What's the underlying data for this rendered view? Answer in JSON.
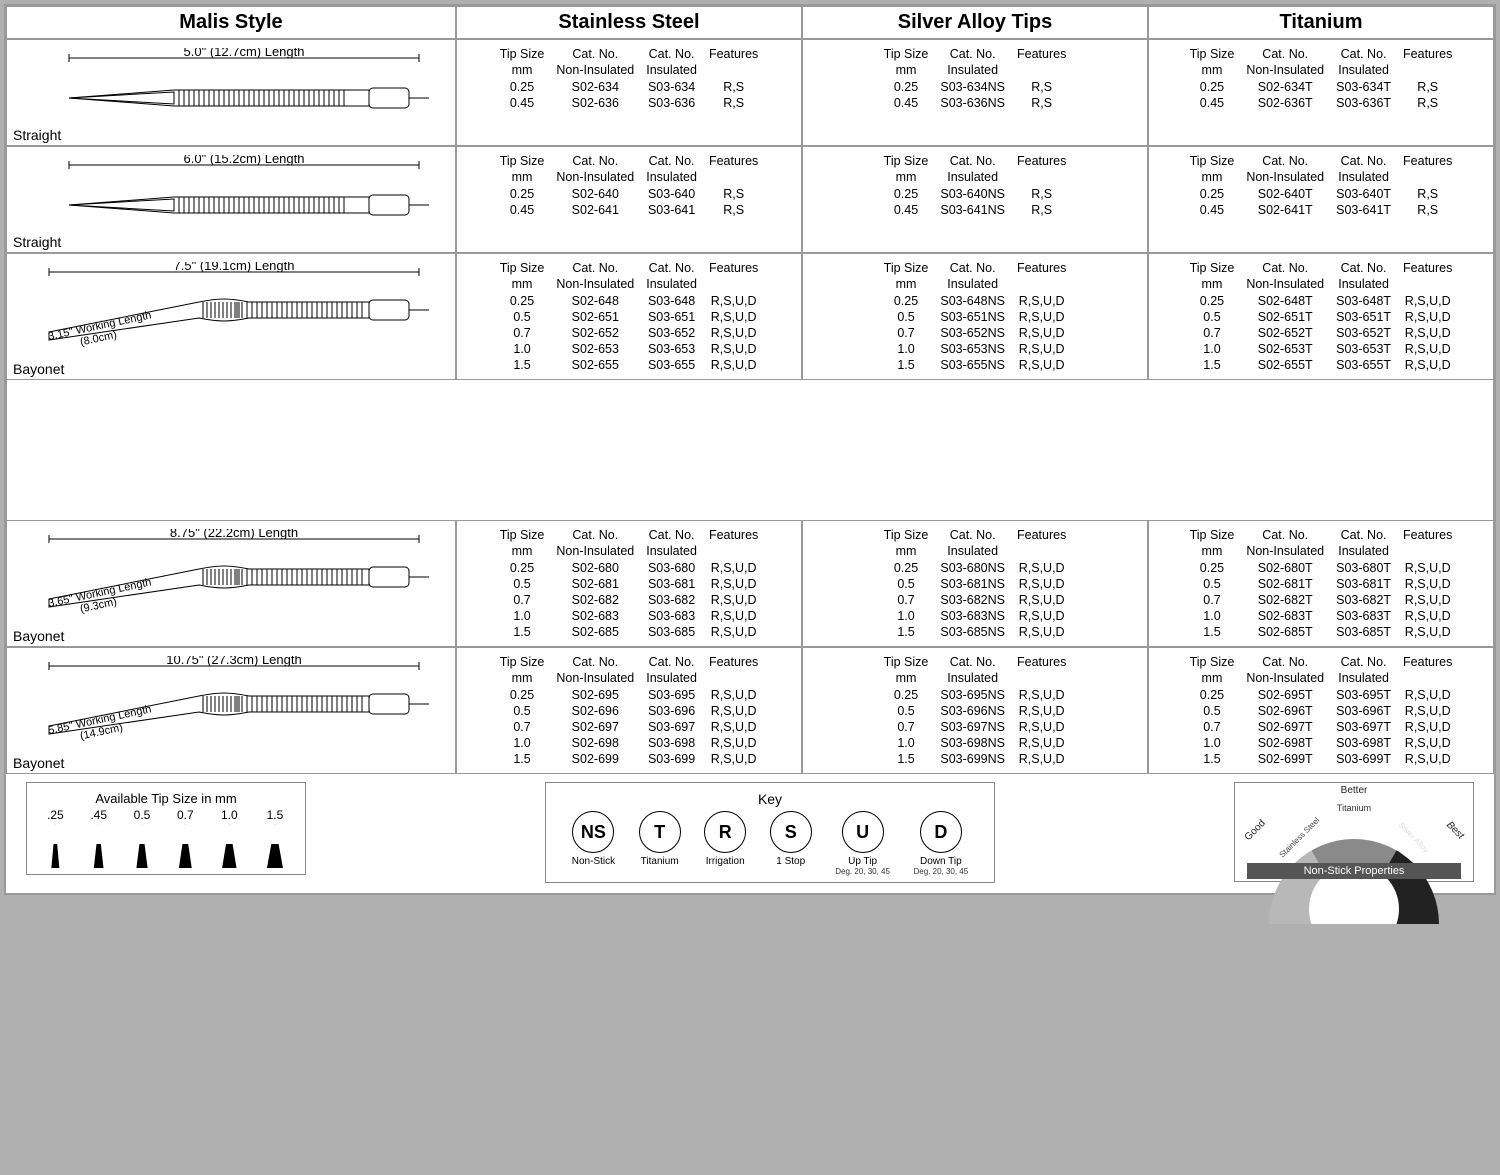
{
  "headers": {
    "style": "Malis Style",
    "materials": [
      "Stainless Steel",
      "Silver Alloy Tips",
      "Titanium"
    ]
  },
  "column_labels": {
    "tip": "Tip Size",
    "tip2": "mm",
    "cat": "Cat. No.",
    "nonins": "Non-Insulated",
    "ins": "Insulated",
    "feat": "Features"
  },
  "rows": [
    {
      "shape": "Straight",
      "length_label": "5.0\" (12.7cm) Length",
      "working": null,
      "stainless": {
        "cols": [
          "tip",
          "nonins",
          "ins",
          "feat"
        ],
        "data": [
          [
            "0.25",
            "S02-634",
            "S03-634",
            "R,S"
          ],
          [
            "0.45",
            "S02-636",
            "S03-636",
            "R,S"
          ]
        ]
      },
      "silver": {
        "cols": [
          "tip",
          "ins",
          "feat"
        ],
        "data": [
          [
            "0.25",
            "S03-634NS",
            "R,S"
          ],
          [
            "0.45",
            "S03-636NS",
            "R,S"
          ]
        ]
      },
      "titanium": {
        "cols": [
          "tip",
          "nonins",
          "ins",
          "feat"
        ],
        "data": [
          [
            "0.25",
            "S02-634T",
            "S03-634T",
            "R,S"
          ],
          [
            "0.45",
            "S02-636T",
            "S03-636T",
            "R,S"
          ]
        ]
      }
    },
    {
      "shape": "Straight",
      "length_label": "6.0\" (15.2cm) Length",
      "working": null,
      "stainless": {
        "cols": [
          "tip",
          "nonins",
          "ins",
          "feat"
        ],
        "data": [
          [
            "0.25",
            "S02-640",
            "S03-640",
            "R,S"
          ],
          [
            "0.45",
            "S02-641",
            "S03-641",
            "R,S"
          ]
        ]
      },
      "silver": {
        "cols": [
          "tip",
          "ins",
          "feat"
        ],
        "data": [
          [
            "0.25",
            "S03-640NS",
            "R,S"
          ],
          [
            "0.45",
            "S03-641NS",
            "R,S"
          ]
        ]
      },
      "titanium": {
        "cols": [
          "tip",
          "nonins",
          "ins",
          "feat"
        ],
        "data": [
          [
            "0.25",
            "S02-640T",
            "S03-640T",
            "R,S"
          ],
          [
            "0.45",
            "S02-641T",
            "S03-641T",
            "R,S"
          ]
        ]
      }
    },
    {
      "shape": "Bayonet",
      "length_label": "7.5\" (19.1cm) Length",
      "working": {
        "line1": "3.15\" Working Length",
        "line2": "(8.0cm)"
      },
      "stainless": {
        "cols": [
          "tip",
          "nonins",
          "ins",
          "feat"
        ],
        "data": [
          [
            "0.25",
            "S02-648",
            "S03-648",
            "R,S,U,D"
          ],
          [
            "0.5",
            "S02-651",
            "S03-651",
            "R,S,U,D"
          ],
          [
            "0.7",
            "S02-652",
            "S03-652",
            "R,S,U,D"
          ],
          [
            "1.0",
            "S02-653",
            "S03-653",
            "R,S,U,D"
          ],
          [
            "1.5",
            "S02-655",
            "S03-655",
            "R,S,U,D"
          ]
        ]
      },
      "silver": {
        "cols": [
          "tip",
          "ins",
          "feat"
        ],
        "data": [
          [
            "0.25",
            "S03-648NS",
            "R,S,U,D"
          ],
          [
            "0.5",
            "S03-651NS",
            "R,S,U,D"
          ],
          [
            "0.7",
            "S03-652NS",
            "R,S,U,D"
          ],
          [
            "1.0",
            "S03-653NS",
            "R,S,U,D"
          ],
          [
            "1.5",
            "S03-655NS",
            "R,S,U,D"
          ]
        ]
      },
      "titanium": {
        "cols": [
          "tip",
          "nonins",
          "ins",
          "feat"
        ],
        "data": [
          [
            "0.25",
            "S02-648T",
            "S03-648T",
            "R,S,U,D"
          ],
          [
            "0.5",
            "S02-651T",
            "S03-651T",
            "R,S,U,D"
          ],
          [
            "0.7",
            "S02-652T",
            "S03-652T",
            "R,S,U,D"
          ],
          [
            "1.0",
            "S02-653T",
            "S03-653T",
            "R,S,U,D"
          ],
          [
            "1.5",
            "S02-655T",
            "S03-655T",
            "R,S,U,D"
          ]
        ]
      }
    },
    {
      "shape": "Bayonet",
      "length_label": "8.75\" (22.2cm) Length",
      "working": {
        "line1": "3.65\" Working Length",
        "line2": "(9.3cm)"
      },
      "stainless": {
        "cols": [
          "tip",
          "nonins",
          "ins",
          "feat"
        ],
        "data": [
          [
            "0.25",
            "S02-680",
            "S03-680",
            "R,S,U,D"
          ],
          [
            "0.5",
            "S02-681",
            "S03-681",
            "R,S,U,D"
          ],
          [
            "0.7",
            "S02-682",
            "S03-682",
            "R,S,U,D"
          ],
          [
            "1.0",
            "S02-683",
            "S03-683",
            "R,S,U,D"
          ],
          [
            "1.5",
            "S02-685",
            "S03-685",
            "R,S,U,D"
          ]
        ]
      },
      "silver": {
        "cols": [
          "tip",
          "ins",
          "feat"
        ],
        "data": [
          [
            "0.25",
            "S03-680NS",
            "R,S,U,D"
          ],
          [
            "0.5",
            "S03-681NS",
            "R,S,U,D"
          ],
          [
            "0.7",
            "S03-682NS",
            "R,S,U,D"
          ],
          [
            "1.0",
            "S03-683NS",
            "R,S,U,D"
          ],
          [
            "1.5",
            "S03-685NS",
            "R,S,U,D"
          ]
        ]
      },
      "titanium": {
        "cols": [
          "tip",
          "nonins",
          "ins",
          "feat"
        ],
        "data": [
          [
            "0.25",
            "S02-680T",
            "S03-680T",
            "R,S,U,D"
          ],
          [
            "0.5",
            "S02-681T",
            "S03-681T",
            "R,S,U,D"
          ],
          [
            "0.7",
            "S02-682T",
            "S03-682T",
            "R,S,U,D"
          ],
          [
            "1.0",
            "S02-683T",
            "S03-683T",
            "R,S,U,D"
          ],
          [
            "1.5",
            "S02-685T",
            "S03-685T",
            "R,S,U,D"
          ]
        ]
      }
    },
    {
      "shape": "Bayonet",
      "length_label": "10.75\" (27.3cm) Length",
      "working": {
        "line1": "5.85\" Working Length",
        "line2": "(14.9cm)"
      },
      "stainless": {
        "cols": [
          "tip",
          "nonins",
          "ins",
          "feat"
        ],
        "data": [
          [
            "0.25",
            "S02-695",
            "S03-695",
            "R,S,U,D"
          ],
          [
            "0.5",
            "S02-696",
            "S03-696",
            "R,S,U,D"
          ],
          [
            "0.7",
            "S02-697",
            "S03-697",
            "R,S,U,D"
          ],
          [
            "1.0",
            "S02-698",
            "S03-698",
            "R,S,U,D"
          ],
          [
            "1.5",
            "S02-699",
            "S03-699",
            "R,S,U,D"
          ]
        ]
      },
      "silver": {
        "cols": [
          "tip",
          "ins",
          "feat"
        ],
        "data": [
          [
            "0.25",
            "S03-695NS",
            "R,S,U,D"
          ],
          [
            "0.5",
            "S03-696NS",
            "R,S,U,D"
          ],
          [
            "0.7",
            "S03-697NS",
            "R,S,U,D"
          ],
          [
            "1.0",
            "S03-698NS",
            "R,S,U,D"
          ],
          [
            "1.5",
            "S03-699NS",
            "R,S,U,D"
          ]
        ]
      },
      "titanium": {
        "cols": [
          "tip",
          "nonins",
          "ins",
          "feat"
        ],
        "data": [
          [
            "0.25",
            "S02-695T",
            "S03-695T",
            "R,S,U,D"
          ],
          [
            "0.5",
            "S02-696T",
            "S03-696T",
            "R,S,U,D"
          ],
          [
            "0.7",
            "S02-697T",
            "S03-697T",
            "R,S,U,D"
          ],
          [
            "1.0",
            "S02-698T",
            "S03-698T",
            "R,S,U,D"
          ],
          [
            "1.5",
            "S02-699T",
            "S03-699T",
            "R,S,U,D"
          ]
        ]
      }
    }
  ],
  "gap_after_index": 2,
  "footer": {
    "tips": {
      "title": "Available Tip Size in mm",
      "sizes": [
        ".25",
        ".45",
        "0.5",
        "0.7",
        "1.0",
        "1.5"
      ]
    },
    "key": {
      "title": "Key",
      "items": [
        {
          "code": "NS",
          "label": "Non-Stick",
          "sub": ""
        },
        {
          "code": "T",
          "label": "Titanium",
          "sub": ""
        },
        {
          "code": "R",
          "label": "Irrigation",
          "sub": ""
        },
        {
          "code": "S",
          "label": "1 Stop",
          "sub": ""
        },
        {
          "code": "U",
          "label": "Up Tip",
          "sub": "Deg. 20, 30, 45"
        },
        {
          "code": "D",
          "label": "Down Tip",
          "sub": "Deg. 20, 30, 45"
        }
      ]
    },
    "gauge": {
      "good": "Good",
      "better": "Better",
      "best": "Best",
      "seg1": "Stainless Steel",
      "seg2": "Titanium",
      "seg3": "Silver Alloy",
      "bar": "Non-Stick Properties"
    }
  }
}
